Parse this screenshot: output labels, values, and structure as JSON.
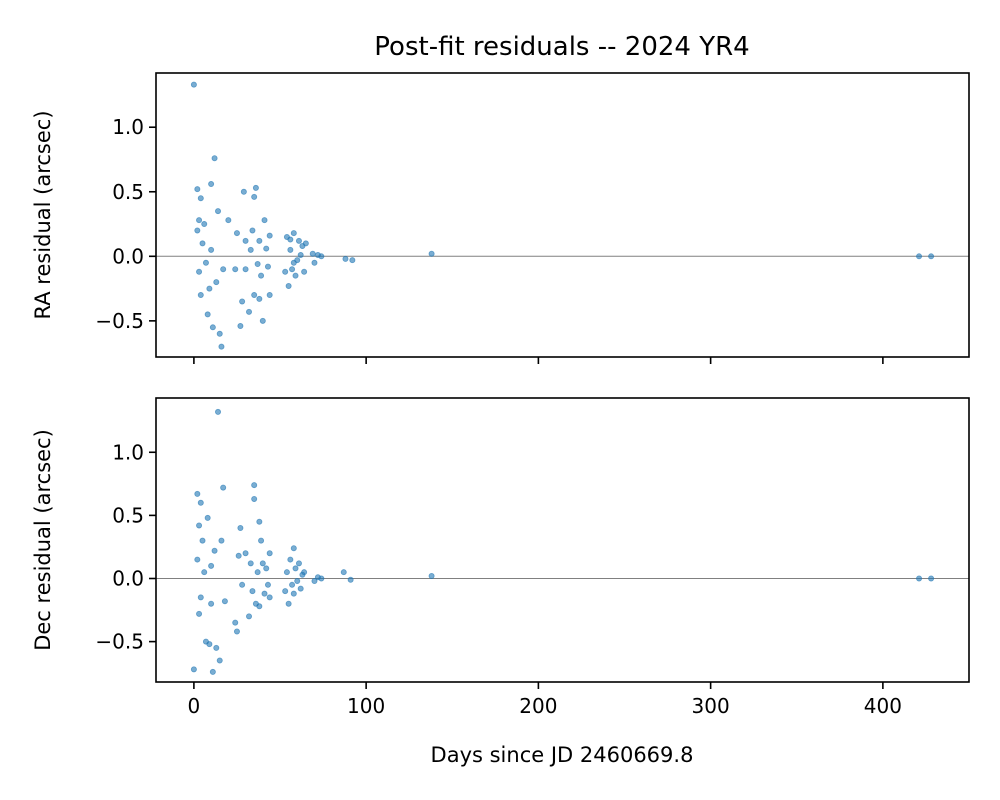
{
  "chart_data": [
    {
      "type": "scatter",
      "title": "Post-fit residuals -- 2024 YR4",
      "xlabel": "",
      "ylabel": "RA residual (arcsec)",
      "xlim": [
        -22,
        450
      ],
      "ylim": [
        -0.78,
        1.42
      ],
      "x_ticks": [
        0,
        100,
        200,
        300,
        400
      ],
      "y_ticks": [
        -0.5,
        0.0,
        0.5,
        1.0
      ],
      "y_tick_labels": [
        "−0.5",
        "0.0",
        "0.5",
        "1.0"
      ],
      "zero_line": true,
      "series": [
        {
          "x": [
            0,
            2,
            2,
            3,
            3,
            4,
            4,
            5,
            6,
            7,
            8,
            9,
            10,
            10,
            11,
            12,
            13,
            14,
            15,
            16,
            17,
            20,
            24,
            25,
            27,
            28,
            29,
            30,
            30,
            32,
            33,
            34,
            35,
            35,
            36,
            37,
            38,
            38,
            39,
            40,
            41,
            42,
            43,
            44,
            44,
            53,
            54,
            55,
            56,
            56,
            57,
            58,
            58,
            59,
            60,
            61,
            62,
            63,
            64,
            65,
            69,
            70,
            72,
            74,
            88,
            92,
            138,
            421,
            428
          ],
          "y": [
            1.33,
            0.52,
            0.2,
            -0.12,
            0.28,
            0.45,
            -0.3,
            0.1,
            0.25,
            -0.05,
            -0.45,
            -0.25,
            0.56,
            0.05,
            -0.55,
            0.76,
            -0.2,
            0.35,
            -0.6,
            -0.7,
            -0.1,
            0.28,
            -0.1,
            0.18,
            -0.54,
            -0.35,
            0.5,
            -0.1,
            0.12,
            -0.43,
            0.05,
            0.2,
            -0.3,
            0.46,
            0.53,
            -0.06,
            -0.33,
            0.12,
            -0.15,
            -0.5,
            0.28,
            0.06,
            -0.08,
            -0.3,
            0.16,
            -0.12,
            0.15,
            -0.23,
            0.05,
            0.13,
            -0.1,
            -0.05,
            0.18,
            -0.15,
            -0.03,
            0.12,
            0.01,
            0.08,
            -0.12,
            0.1,
            0.02,
            -0.05,
            0.01,
            0.0,
            -0.02,
            -0.03,
            0.02,
            0.0,
            0.0
          ]
        }
      ]
    },
    {
      "type": "scatter",
      "xlabel": "Days since JD 2460669.8",
      "ylabel": "Dec residual (arcsec)",
      "xlim": [
        -22,
        450
      ],
      "ylim": [
        -0.82,
        1.43
      ],
      "x_ticks": [
        0,
        100,
        200,
        300,
        400
      ],
      "x_tick_labels": [
        "0",
        "100",
        "200",
        "300",
        "400"
      ],
      "y_ticks": [
        -0.5,
        0.0,
        0.5,
        1.0
      ],
      "y_tick_labels": [
        "−0.5",
        "0.0",
        "0.5",
        "1.0"
      ],
      "zero_line": true,
      "series": [
        {
          "x": [
            0,
            2,
            2,
            3,
            3,
            4,
            4,
            5,
            6,
            7,
            8,
            9,
            10,
            10,
            11,
            12,
            13,
            14,
            15,
            16,
            17,
            18,
            24,
            25,
            26,
            27,
            28,
            30,
            32,
            33,
            34,
            35,
            35,
            36,
            37,
            38,
            38,
            39,
            40,
            41,
            42,
            43,
            44,
            44,
            53,
            54,
            55,
            56,
            57,
            58,
            58,
            59,
            60,
            61,
            62,
            63,
            64,
            70,
            72,
            74,
            87,
            91,
            138,
            421,
            428
          ],
          "y": [
            -0.72,
            0.67,
            0.15,
            -0.28,
            0.42,
            0.6,
            -0.15,
            0.3,
            0.05,
            -0.5,
            0.48,
            -0.52,
            0.1,
            -0.2,
            -0.74,
            0.22,
            -0.55,
            1.32,
            -0.65,
            0.3,
            0.72,
            -0.18,
            -0.35,
            -0.42,
            0.18,
            0.4,
            -0.05,
            0.2,
            -0.3,
            0.12,
            -0.1,
            0.63,
            0.74,
            -0.2,
            0.05,
            0.45,
            -0.22,
            0.3,
            0.12,
            -0.12,
            0.08,
            -0.05,
            0.2,
            -0.15,
            -0.1,
            0.05,
            -0.2,
            0.15,
            -0.05,
            0.24,
            -0.12,
            0.08,
            -0.02,
            0.12,
            -0.08,
            0.03,
            0.05,
            -0.02,
            0.01,
            0.0,
            0.05,
            -0.01,
            0.02,
            0.0,
            0.0
          ]
        }
      ]
    }
  ]
}
